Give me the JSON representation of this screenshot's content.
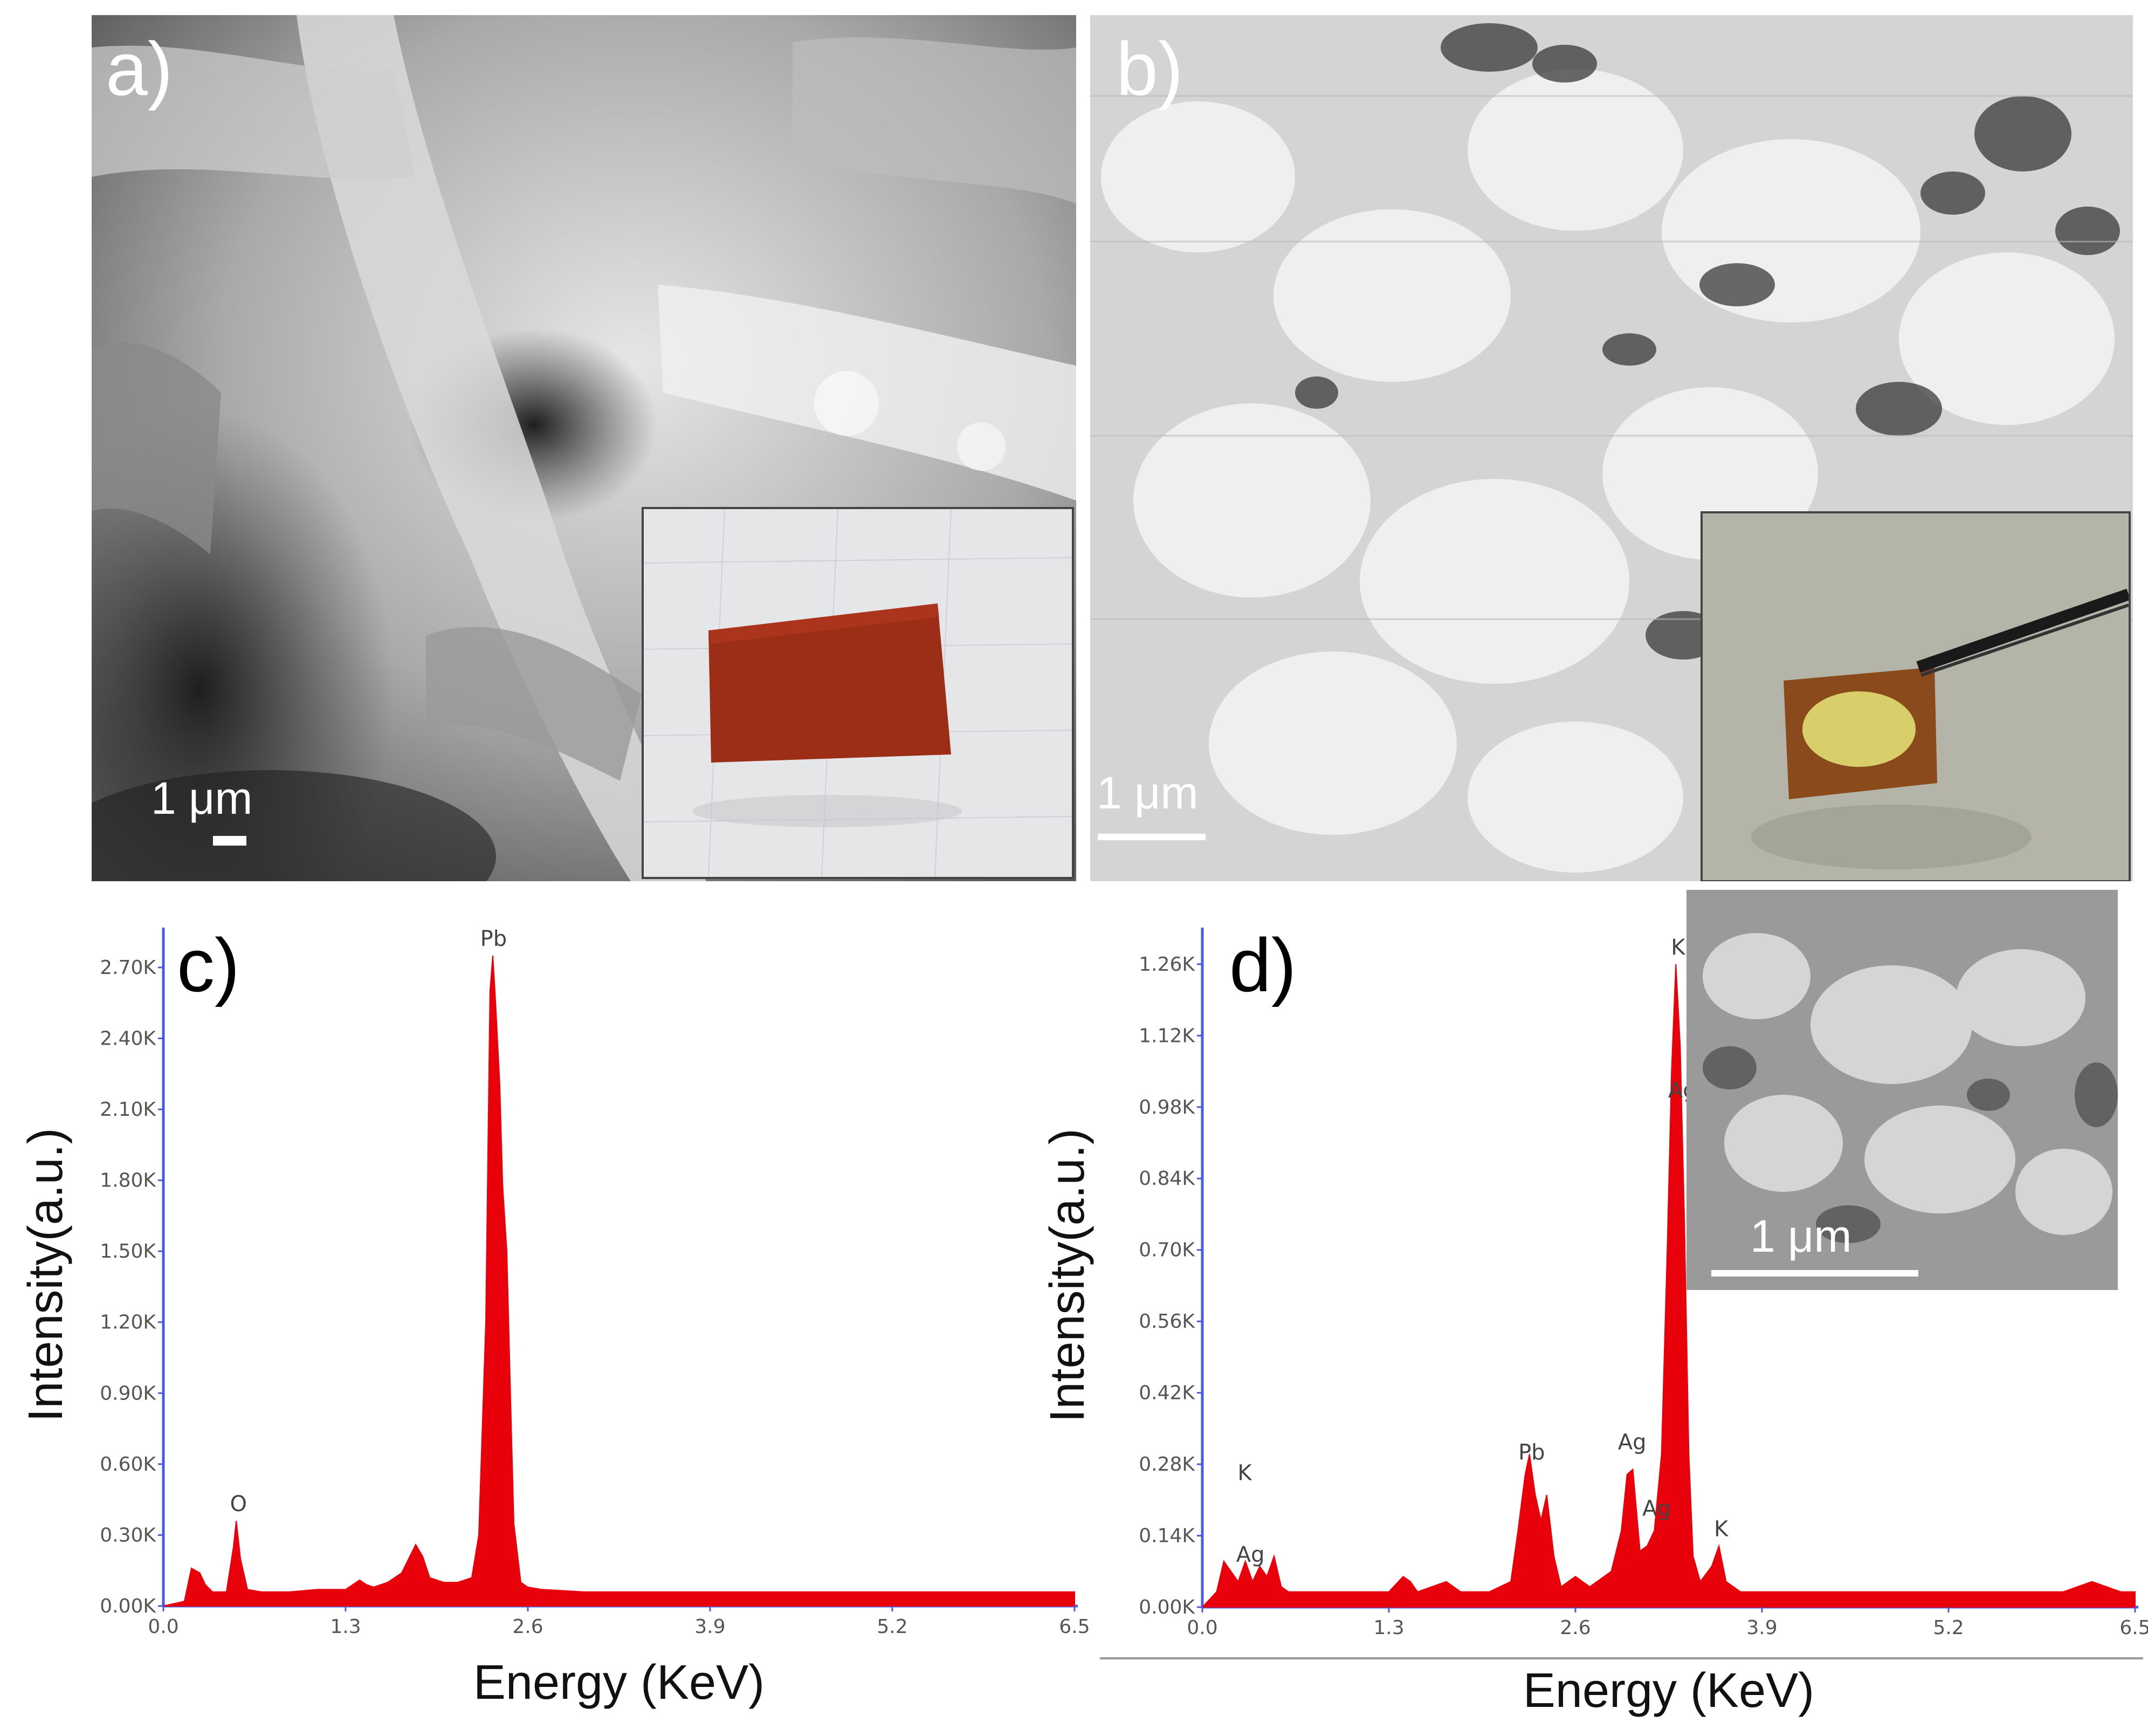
{
  "panels": {
    "a": {
      "label": "a)",
      "scale_text": "1 μm"
    },
    "b": {
      "label": "b)",
      "scale_text": "1 μm"
    },
    "d_inset": {
      "scale_text": "1 μm"
    }
  },
  "chart_data": [
    {
      "panel_label": "c)",
      "type": "area",
      "xlabel": "Energy (KeV)",
      "ylabel": "Intensity(a.u.)",
      "xlim": [
        0,
        6.5
      ],
      "ylim": [
        0,
        2.8
      ],
      "x_ticks": [
        "0.0",
        "1.3",
        "2.6",
        "3.9",
        "5.2",
        "6.5"
      ],
      "y_ticks": [
        "0.00K",
        "0.30K",
        "0.60K",
        "0.90K",
        "1.20K",
        "1.50K",
        "1.80K",
        "2.10K",
        "2.40K",
        "2.70K"
      ],
      "color": "#e8000b",
      "peaks": [
        {
          "x": 0.52,
          "y": 0.36,
          "label": "O"
        },
        {
          "x": 2.34,
          "y": 2.75,
          "label": "Pb"
        }
      ],
      "series": [
        {
          "x": [
            0.0,
            0.15,
            0.2,
            0.26,
            0.3,
            0.35,
            0.45,
            0.5,
            0.52,
            0.55,
            0.6,
            0.7,
            0.9,
            1.1,
            1.3,
            1.4,
            1.45,
            1.5,
            1.6,
            1.7,
            1.75,
            1.8,
            1.85,
            1.9,
            2.0,
            2.1,
            2.2,
            2.25,
            2.3,
            2.33,
            2.35,
            2.37,
            2.4,
            2.42,
            2.45,
            2.48,
            2.5,
            2.55,
            2.6,
            2.7,
            3.0,
            3.5,
            4.0,
            4.5,
            5.0,
            5.5,
            6.0,
            6.5
          ],
          "y": [
            0.0,
            0.02,
            0.16,
            0.14,
            0.09,
            0.06,
            0.06,
            0.25,
            0.36,
            0.2,
            0.07,
            0.06,
            0.06,
            0.07,
            0.07,
            0.11,
            0.09,
            0.08,
            0.1,
            0.14,
            0.2,
            0.26,
            0.21,
            0.12,
            0.1,
            0.1,
            0.12,
            0.3,
            1.2,
            2.6,
            2.75,
            2.55,
            2.2,
            1.78,
            1.5,
            0.8,
            0.35,
            0.1,
            0.08,
            0.07,
            0.06,
            0.06,
            0.06,
            0.06,
            0.06,
            0.06,
            0.06,
            0.06
          ]
        }
      ]
    },
    {
      "panel_label": "d)",
      "type": "area",
      "xlabel": "Energy (KeV)",
      "ylabel": "Intensity(a.u.)",
      "xlim": [
        0,
        6.5
      ],
      "ylim": [
        0,
        1.3
      ],
      "x_ticks": [
        "0.0",
        "1.3",
        "2.6",
        "3.9",
        "5.2",
        "6.5"
      ],
      "y_ticks": [
        "0.00K",
        "0.14K",
        "0.28K",
        "0.42K",
        "0.56K",
        "0.70K",
        "0.84K",
        "0.98K",
        "1.12K",
        "1.26K"
      ],
      "color": "#e8000b",
      "peaks": [
        {
          "x": 0.28,
          "y": 0.23,
          "label": "K"
        },
        {
          "x": 0.32,
          "y": 0.07,
          "label": "Ag"
        },
        {
          "x": 2.28,
          "y": 0.27,
          "label": "Pb"
        },
        {
          "x": 2.98,
          "y": 0.29,
          "label": "Ag"
        },
        {
          "x": 3.15,
          "y": 0.16,
          "label": "Ag"
        },
        {
          "x": 3.3,
          "y": 1.26,
          "label": "K"
        },
        {
          "x": 3.33,
          "y": 0.98,
          "label": "Ag"
        },
        {
          "x": 3.6,
          "y": 0.12,
          "label": "K"
        }
      ],
      "series": [
        {
          "x": [
            0.0,
            0.1,
            0.15,
            0.2,
            0.25,
            0.3,
            0.35,
            0.4,
            0.45,
            0.5,
            0.55,
            0.6,
            0.8,
            1.0,
            1.3,
            1.4,
            1.45,
            1.5,
            1.6,
            1.7,
            1.8,
            2.0,
            2.15,
            2.2,
            2.25,
            2.28,
            2.32,
            2.36,
            2.4,
            2.45,
            2.5,
            2.6,
            2.7,
            2.85,
            2.92,
            2.96,
            3.0,
            3.05,
            3.1,
            3.15,
            3.2,
            3.24,
            3.27,
            3.3,
            3.33,
            3.36,
            3.39,
            3.42,
            3.47,
            3.55,
            3.6,
            3.65,
            3.75,
            4.0,
            4.5,
            5.0,
            5.5,
            6.0,
            6.2,
            6.4,
            6.5
          ],
          "y": [
            0.0,
            0.03,
            0.09,
            0.07,
            0.05,
            0.09,
            0.05,
            0.08,
            0.06,
            0.1,
            0.04,
            0.03,
            0.03,
            0.03,
            0.03,
            0.06,
            0.05,
            0.03,
            0.04,
            0.05,
            0.03,
            0.03,
            0.05,
            0.15,
            0.26,
            0.3,
            0.22,
            0.17,
            0.22,
            0.1,
            0.04,
            0.06,
            0.04,
            0.07,
            0.15,
            0.26,
            0.27,
            0.11,
            0.12,
            0.15,
            0.3,
            0.7,
            1.05,
            1.26,
            1.1,
            0.75,
            0.3,
            0.1,
            0.05,
            0.08,
            0.12,
            0.05,
            0.03,
            0.03,
            0.03,
            0.03,
            0.03,
            0.03,
            0.05,
            0.03,
            0.03
          ]
        }
      ]
    }
  ]
}
